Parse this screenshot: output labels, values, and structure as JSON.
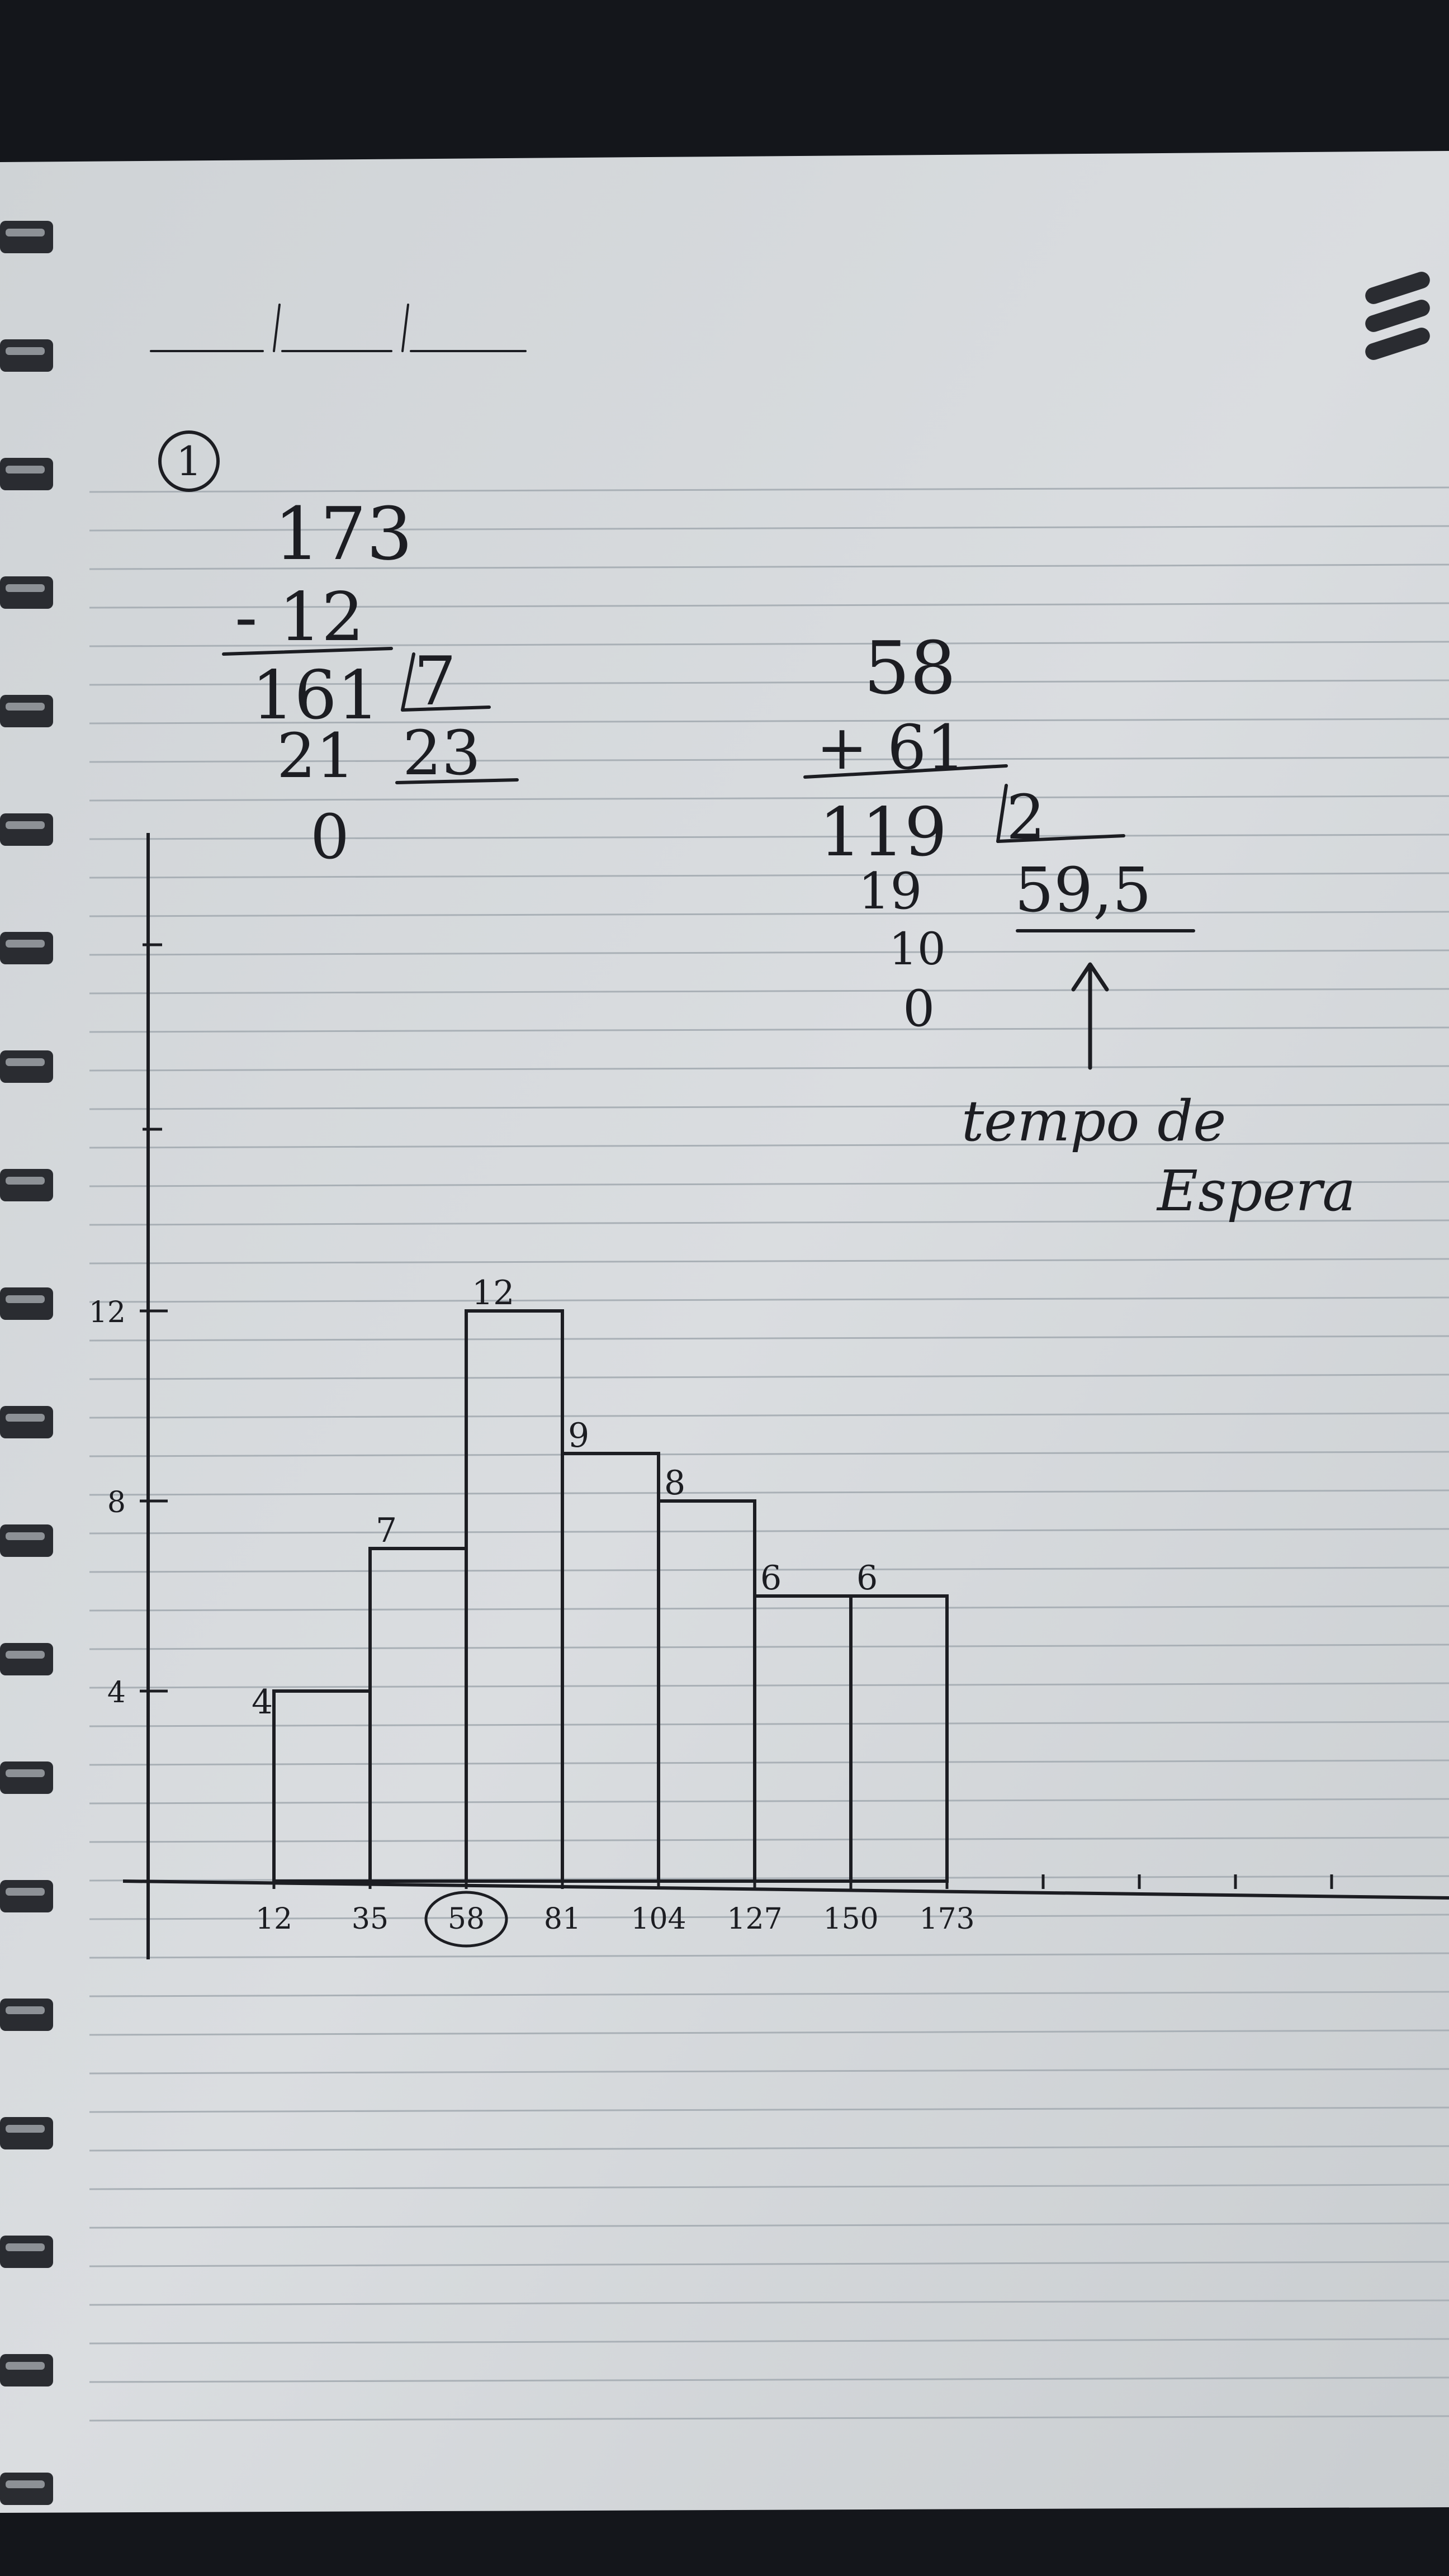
{
  "notebook": {
    "paper_color": "#d9dcde",
    "ink_color": "#1c1d22",
    "rule_color": "#a9b0b6",
    "binding_color": "#2a2c31",
    "background_color": "#14161b"
  },
  "problem_number": "1",
  "left_division": {
    "dividend": "173",
    "subtrahend": "- 12",
    "difference": "161",
    "divisor": "7",
    "remainder_1": "21",
    "quotient": "23",
    "remainder_2": "0"
  },
  "right_division": {
    "addend_1": "58",
    "addend_2": "+ 61",
    "sum": "119",
    "divisor": "2",
    "remainder_1": "19",
    "quotient": "59,5",
    "remainder_2": "10",
    "remainder_3": "0",
    "note_line_1": "tempo de",
    "note_line_2": "Espera"
  },
  "chart_data": {
    "type": "bar",
    "histogram": true,
    "bin_edges": [
      12,
      35,
      58,
      81,
      104,
      127,
      150,
      173
    ],
    "tick_labels": [
      "12",
      "35",
      "58",
      "81",
      "104",
      "127",
      "150",
      "173"
    ],
    "values": [
      4,
      7,
      12,
      9,
      8,
      6,
      6
    ],
    "value_labels": [
      "4",
      "7",
      "12",
      "9",
      "8",
      "6",
      "6"
    ],
    "y_ticks": [
      "4",
      "8",
      "12"
    ],
    "y_tick_values": [
      4,
      8,
      12
    ],
    "circled_tick": "58",
    "title": "",
    "xlabel": "",
    "ylabel": ""
  }
}
